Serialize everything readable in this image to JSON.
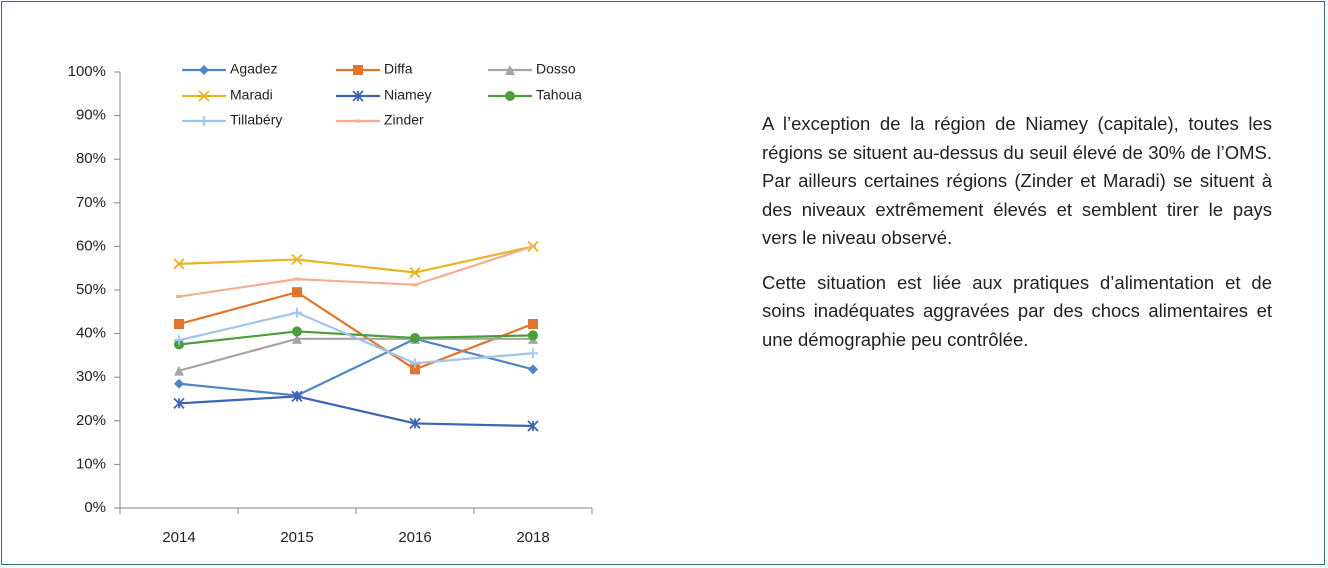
{
  "chart_data": {
    "type": "line",
    "categories": [
      "2014",
      "2015",
      "2016",
      "2018"
    ],
    "series": [
      {
        "name": "Agadez",
        "color": "#4f86c6",
        "marker": "diamond",
        "values": [
          28.5,
          25.8,
          38.8,
          31.8
        ]
      },
      {
        "name": "Diffa",
        "color": "#e0752d",
        "marker": "square",
        "values": [
          42.2,
          49.5,
          31.8,
          42.2
        ]
      },
      {
        "name": "Dosso",
        "color": "#a5a5a5",
        "marker": "triangle",
        "values": [
          31.5,
          38.8,
          38.8,
          38.8
        ]
      },
      {
        "name": "Maradi",
        "color": "#e8b520",
        "marker": "x",
        "values": [
          56,
          57,
          54,
          60
        ]
      },
      {
        "name": "Niamey",
        "color": "#3d64b0",
        "marker": "star",
        "values": [
          24,
          25.6,
          19.4,
          18.8
        ]
      },
      {
        "name": "Tahoua",
        "color": "#4c9e3a",
        "marker": "circle",
        "values": [
          37.5,
          40.5,
          39,
          39.6
        ]
      },
      {
        "name": "Tillabéry",
        "color": "#a2c4e8",
        "marker": "plus",
        "values": [
          38.5,
          44.8,
          33.2,
          35.5
        ]
      },
      {
        "name": "Zinder",
        "color": "#f4ad95",
        "marker": "dash",
        "values": [
          48.5,
          52.5,
          51.2,
          60
        ]
      }
    ],
    "ylim": [
      0,
      100
    ],
    "yticks": [
      {
        "value": 0,
        "label": "0%"
      },
      {
        "value": 10,
        "label": "10%"
      },
      {
        "value": 20,
        "label": "20%"
      },
      {
        "value": 30,
        "label": "30%"
      },
      {
        "value": 40,
        "label": "40%"
      },
      {
        "value": 50,
        "label": "50%"
      },
      {
        "value": 60,
        "label": "60%"
      },
      {
        "value": 70,
        "label": "70%"
      },
      {
        "value": 80,
        "label": "80%"
      },
      {
        "value": 90,
        "label": "90%"
      },
      {
        "value": 100,
        "label": "100%"
      }
    ],
    "grid": false
  },
  "text": {
    "paragraphs": [
      "A l’exception de la région de Niamey (capitale), toutes les régions se situent au-dessus du seuil élevé de 30% de l’OMS. Par ailleurs certaines régions (Zinder et Maradi) se situent à des niveaux extrêmement élevés et semblent tirer le pays vers le niveau observé.",
      "Cette situation est liée aux pratiques d’alimentation et de soins inadéquates aggravées par des chocs alimentaires et une démographie peu contrôlée."
    ]
  }
}
